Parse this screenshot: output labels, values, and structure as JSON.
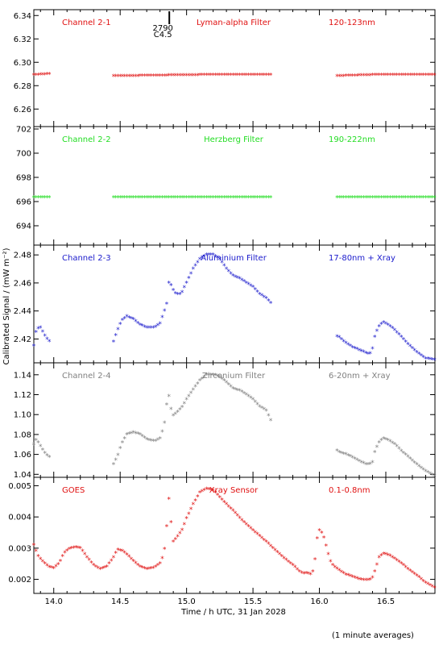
{
  "chart_data": {
    "type": "scatter",
    "xlabel": "Time / h UTC, 31 Jan 2028",
    "ylabel": "Calibrated Signal / (mW m⁻²)",
    "footnote": "(1 minute averages)",
    "xlim": [
      13.85,
      16.87
    ],
    "xticks": [
      "14.0",
      "14.5",
      "15.0",
      "15.5",
      "16.0",
      "16.5"
    ],
    "marker_glyph": "*",
    "annotation": {
      "x": 14.87,
      "labels": [
        "2790",
        "C4.5"
      ]
    },
    "panels": [
      {
        "name": "Channel 2-1",
        "filter": "Lyman-alpha Filter",
        "band": "120-123nm",
        "color": "#e01010",
        "ylim": [
          6.245,
          6.345
        ],
        "yticks": [
          "6.26",
          "6.28",
          "6.30",
          "6.32",
          "6.34"
        ],
        "points": [
          [
            13.85,
            6.289
          ],
          [
            13.98,
            6.29
          ],
          [
            14.45,
            6.288
          ],
          [
            15.12,
            6.289
          ],
          [
            15.65,
            6.289
          ],
          [
            16.12,
            6.288
          ],
          [
            16.4,
            6.289
          ],
          [
            16.87,
            6.289
          ]
        ],
        "gaps": [
          [
            13.98,
            14.45
          ],
          [
            15.65,
            16.12
          ]
        ]
      },
      {
        "name": "Channel 2-2",
        "filter": "Herzberg Filter",
        "band": "190-222nm",
        "color": "#22dd22",
        "ylim": [
          692.4,
          702.2
        ],
        "yticks": [
          "694",
          "696",
          "698",
          "700",
          "702"
        ],
        "points": [
          [
            13.85,
            696.35
          ],
          [
            13.98,
            696.35
          ],
          [
            14.45,
            696.35
          ],
          [
            15.65,
            696.35
          ],
          [
            16.12,
            696.35
          ],
          [
            16.87,
            696.35
          ]
        ],
        "gaps": [
          [
            13.98,
            14.45
          ],
          [
            15.65,
            16.12
          ]
        ]
      },
      {
        "name": "Channel 2-3",
        "filter": "Aluminium Filter",
        "band": "17-80nm + Xray",
        "color": "#1a1acc",
        "ylim": [
          2.403,
          2.487
        ],
        "yticks": [
          "2.42",
          "2.44",
          "2.46",
          "2.48"
        ],
        "points": [
          [
            13.85,
            2.415
          ],
          [
            13.87,
            2.427
          ],
          [
            13.9,
            2.428
          ],
          [
            13.94,
            2.421
          ],
          [
            13.98,
            2.417
          ],
          [
            14.45,
            2.418
          ],
          [
            14.48,
            2.426
          ],
          [
            14.51,
            2.433
          ],
          [
            14.55,
            2.436
          ],
          [
            14.6,
            2.434
          ],
          [
            14.65,
            2.43
          ],
          [
            14.7,
            2.428
          ],
          [
            14.76,
            2.428
          ],
          [
            14.8,
            2.431
          ],
          [
            14.83,
            2.439
          ],
          [
            14.85,
            2.445
          ],
          [
            14.87,
            2.463
          ],
          [
            14.89,
            2.456
          ],
          [
            14.92,
            2.452
          ],
          [
            14.96,
            2.452
          ],
          [
            15.0,
            2.46
          ],
          [
            15.05,
            2.47
          ],
          [
            15.1,
            2.477
          ],
          [
            15.15,
            2.48
          ],
          [
            15.2,
            2.48
          ],
          [
            15.25,
            2.477
          ],
          [
            15.3,
            2.47
          ],
          [
            15.35,
            2.465
          ],
          [
            15.4,
            2.463
          ],
          [
            15.45,
            2.46
          ],
          [
            15.5,
            2.457
          ],
          [
            15.55,
            2.452
          ],
          [
            15.6,
            2.449
          ],
          [
            15.64,
            2.445
          ],
          [
            16.12,
            2.422
          ],
          [
            16.15,
            2.421
          ],
          [
            16.2,
            2.417
          ],
          [
            16.25,
            2.414
          ],
          [
            16.3,
            2.412
          ],
          [
            16.35,
            2.41
          ],
          [
            16.38,
            2.409
          ],
          [
            16.4,
            2.413
          ],
          [
            16.42,
            2.423
          ],
          [
            16.45,
            2.429
          ],
          [
            16.48,
            2.432
          ],
          [
            16.52,
            2.43
          ],
          [
            16.57,
            2.426
          ],
          [
            16.62,
            2.421
          ],
          [
            16.68,
            2.415
          ],
          [
            16.74,
            2.41
          ],
          [
            16.8,
            2.406
          ],
          [
            16.87,
            2.405
          ]
        ],
        "gaps": [
          [
            13.98,
            14.45
          ],
          [
            15.64,
            16.12
          ]
        ]
      },
      {
        "name": "Channel 2-4",
        "filter": "Zirconium Filter",
        "band": "6-20nm + Xray",
        "color": "#808080",
        "ylim": [
          1.037,
          1.152
        ],
        "yticks": [
          "1.04",
          "1.06",
          "1.08",
          "1.10",
          "1.12",
          "1.14"
        ],
        "points": [
          [
            13.85,
            1.07
          ],
          [
            13.87,
            1.075
          ],
          [
            13.9,
            1.068
          ],
          [
            13.94,
            1.06
          ],
          [
            13.98,
            1.056
          ],
          [
            14.45,
            1.05
          ],
          [
            14.48,
            1.058
          ],
          [
            14.51,
            1.07
          ],
          [
            14.55,
            1.08
          ],
          [
            14.6,
            1.082
          ],
          [
            14.65,
            1.08
          ],
          [
            14.7,
            1.075
          ],
          [
            14.76,
            1.073
          ],
          [
            14.8,
            1.076
          ],
          [
            14.83,
            1.088
          ],
          [
            14.85,
            1.11
          ],
          [
            14.87,
            1.12
          ],
          [
            14.89,
            1.098
          ],
          [
            14.93,
            1.102
          ],
          [
            14.97,
            1.108
          ],
          [
            15.0,
            1.115
          ],
          [
            15.05,
            1.125
          ],
          [
            15.1,
            1.134
          ],
          [
            15.15,
            1.14
          ],
          [
            15.2,
            1.14
          ],
          [
            15.25,
            1.138
          ],
          [
            15.3,
            1.132
          ],
          [
            15.35,
            1.126
          ],
          [
            15.4,
            1.124
          ],
          [
            15.45,
            1.12
          ],
          [
            15.5,
            1.115
          ],
          [
            15.55,
            1.108
          ],
          [
            15.6,
            1.104
          ],
          [
            15.64,
            1.092
          ],
          [
            16.12,
            1.065
          ],
          [
            16.15,
            1.062
          ],
          [
            16.2,
            1.06
          ],
          [
            16.25,
            1.057
          ],
          [
            16.3,
            1.053
          ],
          [
            16.35,
            1.05
          ],
          [
            16.38,
            1.05
          ],
          [
            16.4,
            1.052
          ],
          [
            16.42,
            1.064
          ],
          [
            16.45,
            1.072
          ],
          [
            16.48,
            1.076
          ],
          [
            16.52,
            1.074
          ],
          [
            16.57,
            1.07
          ],
          [
            16.62,
            1.063
          ],
          [
            16.68,
            1.056
          ],
          [
            16.74,
            1.049
          ],
          [
            16.8,
            1.043
          ],
          [
            16.87,
            1.038
          ]
        ],
        "gaps": [
          [
            13.98,
            14.45
          ],
          [
            15.64,
            16.12
          ]
        ]
      },
      {
        "name": "GOES",
        "filter": "Xray Sensor",
        "band": "0.1-0.8nm",
        "color": "#e01010",
        "ylim": [
          0.00155,
          0.00527
        ],
        "yticks": [
          "0.002",
          "0.003",
          "0.004",
          "0.005"
        ],
        "points": [
          [
            13.85,
            0.0031
          ],
          [
            13.88,
            0.00275
          ],
          [
            13.92,
            0.00255
          ],
          [
            13.96,
            0.0024
          ],
          [
            14.0,
            0.00235
          ],
          [
            14.04,
            0.0025
          ],
          [
            14.08,
            0.00285
          ],
          [
            14.12,
            0.00298
          ],
          [
            14.17,
            0.00302
          ],
          [
            14.2,
            0.003
          ],
          [
            14.25,
            0.0027
          ],
          [
            14.3,
            0.00245
          ],
          [
            14.35,
            0.00232
          ],
          [
            14.4,
            0.0024
          ],
          [
            14.45,
            0.0027
          ],
          [
            14.48,
            0.00295
          ],
          [
            14.52,
            0.0029
          ],
          [
            14.56,
            0.00275
          ],
          [
            14.6,
            0.00258
          ],
          [
            14.65,
            0.0024
          ],
          [
            14.7,
            0.00232
          ],
          [
            14.75,
            0.00236
          ],
          [
            14.8,
            0.0025
          ],
          [
            14.83,
            0.00282
          ],
          [
            14.85,
            0.0037
          ],
          [
            14.86,
            0.0044
          ],
          [
            14.87,
            0.00465
          ],
          [
            14.88,
            0.00395
          ],
          [
            14.9,
            0.0032
          ],
          [
            14.93,
            0.00335
          ],
          [
            14.97,
            0.0036
          ],
          [
            15.0,
            0.00395
          ],
          [
            15.05,
            0.0044
          ],
          [
            15.1,
            0.00478
          ],
          [
            15.15,
            0.0049
          ],
          [
            15.2,
            0.00485
          ],
          [
            15.25,
            0.00462
          ],
          [
            15.3,
            0.0044
          ],
          [
            15.35,
            0.0042
          ],
          [
            15.4,
            0.00396
          ],
          [
            15.45,
            0.00376
          ],
          [
            15.5,
            0.00357
          ],
          [
            15.55,
            0.00338
          ],
          [
            15.6,
            0.0032
          ],
          [
            15.65,
            0.003
          ],
          [
            15.7,
            0.0028
          ],
          [
            15.75,
            0.00262
          ],
          [
            15.8,
            0.00245
          ],
          [
            15.85,
            0.00225
          ],
          [
            15.88,
            0.00218
          ],
          [
            15.91,
            0.0022
          ],
          [
            15.94,
            0.00215
          ],
          [
            15.96,
            0.00235
          ],
          [
            15.98,
            0.0032
          ],
          [
            15.99,
            0.00352
          ],
          [
            16.0,
            0.00356
          ],
          [
            16.02,
            0.00348
          ],
          [
            16.04,
            0.00325
          ],
          [
            16.06,
            0.0029
          ],
          [
            16.08,
            0.0026
          ],
          [
            16.1,
            0.00245
          ],
          [
            16.15,
            0.00228
          ],
          [
            16.2,
            0.00215
          ],
          [
            16.25,
            0.00208
          ],
          [
            16.3,
            0.002
          ],
          [
            16.35,
            0.00197
          ],
          [
            16.38,
            0.00198
          ],
          [
            16.4,
            0.00205
          ],
          [
            16.42,
            0.00228
          ],
          [
            16.45,
            0.0027
          ],
          [
            16.48,
            0.00282
          ],
          [
            16.52,
            0.00278
          ],
          [
            16.57,
            0.00265
          ],
          [
            16.62,
            0.0025
          ],
          [
            16.68,
            0.00228
          ],
          [
            16.74,
            0.0021
          ],
          [
            16.8,
            0.00188
          ],
          [
            16.87,
            0.00172
          ]
        ],
        "gaps": []
      }
    ]
  }
}
